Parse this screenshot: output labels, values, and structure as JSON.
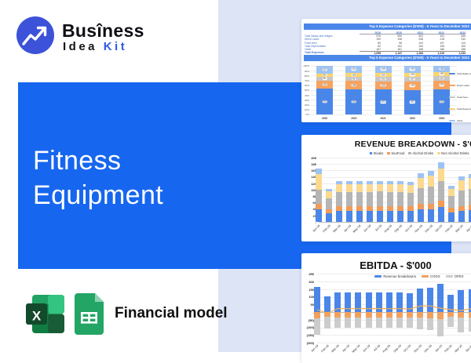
{
  "brand": {
    "word_top": "Busîness",
    "word_bottom": "Idea",
    "word_accent": "Kit"
  },
  "hero": {
    "line1": "Fitness",
    "line2": "Equipment"
  },
  "footer": {
    "label": "Financial model"
  },
  "colors": {
    "accent_blue": "#1666ef",
    "panel_lavender": "#dde4f6",
    "logo_blue": "#3b52d9",
    "chart_header_blue": "#4a86e8",
    "brand_accent": "#2d5be8"
  },
  "chart_data": [
    {
      "type": "table",
      "title": "Top 5 Expense Categories ($'000) - 5 Years to December 2023",
      "columns": [
        "2019",
        "2020",
        "2021",
        "2022",
        "2023"
      ],
      "series": [
        {
          "name": "Total Salary and Wages",
          "color": "#4a86e8",
          "values": [
            576,
            590,
            602,
            611,
            635
          ]
        },
        {
          "name": "Direct Labor",
          "color": "#f6a35f",
          "values": [
            190,
            198,
            208,
            218,
            230
          ]
        },
        {
          "name": "Fixed fees",
          "color": "#c7c7c7",
          "values": [
            80,
            96,
            102,
            107,
            110
          ]
        },
        {
          "name": "Total Depreciation",
          "color": "#fbd46d",
          "values": [
            82,
            102,
            104,
            108,
            100
          ]
        },
        {
          "name": "Other",
          "color": "#9dc3f3",
          "values": [
            167,
            161,
            168,
            166,
            158
          ]
        }
      ],
      "total_label": "Total Expenses",
      "totals": [
        1095,
        1147,
        1184,
        1210,
        1233
      ],
      "bar_type": "stacked-100-percent",
      "y_ticks_percent": [
        0,
        10,
        20,
        30,
        40,
        50,
        60,
        70,
        80,
        90,
        100
      ],
      "legend_position": "right"
    },
    {
      "type": "bar",
      "stacked": true,
      "title": "REVENUE BREAKDOWN - $'000",
      "categories": [
        "Jan-19",
        "Feb-19",
        "Mar-19",
        "Apr-19",
        "May-19",
        "Jun-19",
        "Jul-19",
        "Aug-19",
        "Sep-19",
        "Oct-19",
        "Nov-19",
        "Dec-19",
        "Jan-20",
        "Feb-20",
        "Mar-20",
        "Apr-20"
      ],
      "series": [
        {
          "name": "Steaks",
          "color": "#4a86e8",
          "in_legend": true,
          "values": [
            40,
            27,
            33,
            33,
            33,
            33,
            35,
            33,
            33,
            33,
            38,
            40,
            47,
            30,
            35,
            37
          ]
        },
        {
          "name": "SeaFood",
          "color": "#f29b57",
          "in_legend": true,
          "values": [
            15,
            13,
            15,
            15,
            15,
            15,
            15,
            15,
            15,
            15,
            17,
            17,
            20,
            13,
            15,
            16
          ]
        },
        {
          "name": "Alcohol Drinks",
          "color": "#b5b5b5",
          "in_legend": true,
          "values": [
            45,
            33,
            44,
            44,
            44,
            44,
            44,
            44,
            44,
            43,
            50,
            52,
            60,
            38,
            47,
            50
          ]
        },
        {
          "name": "Non Alcohol Drinks",
          "color": "#fbd98f",
          "in_legend": true,
          "values": [
            48,
            22,
            25,
            25,
            25,
            25,
            24,
            25,
            25,
            24,
            32,
            34,
            40,
            22,
            32,
            34
          ]
        },
        {
          "name": "unlabeled-top-segment",
          "color": "#9dc3f3",
          "in_legend": false,
          "values": [
            17,
            8,
            10,
            10,
            10,
            10,
            10,
            10,
            10,
            10,
            15,
            15,
            18,
            10,
            13,
            13
          ]
        }
      ],
      "ylim": [
        0,
        200
      ],
      "ytick_step": 20,
      "zero_tick_label": "-",
      "legend_position": "top"
    },
    {
      "type": "bar+line",
      "title": "EBITDA - $'000",
      "categories": [
        "Jan-19",
        "Feb-19",
        "Mar-19",
        "Apr-19",
        "May-19",
        "Jun-19",
        "Jul-19",
        "Aug-19",
        "Sep-19",
        "Oct-19",
        "Nov-19",
        "Dec-19",
        "Jan-20",
        "Feb-20",
        "Mar-20",
        "Apr-20"
      ],
      "series": [
        {
          "name": "Revenue breakdowns",
          "color": "#4a86e8",
          "values": [
            165,
            103,
            127,
            127,
            127,
            127,
            128,
            127,
            127,
            125,
            152,
            158,
            185,
            113,
            142,
            150
          ]
        },
        {
          "name": "COGS",
          "color": "#f2a05c",
          "values": [
            -40,
            -30,
            -35,
            -35,
            -35,
            -35,
            -35,
            -35,
            -35,
            -35,
            -38,
            -40,
            -45,
            -32,
            -37,
            -38
          ]
        },
        {
          "name": "OPEX",
          "color": "#cccccc",
          "values": [
            -110,
            -80,
            -70,
            -70,
            -70,
            -70,
            -70,
            -70,
            -70,
            -70,
            -75,
            -78,
            -115,
            -65,
            -95,
            -90
          ]
        }
      ],
      "line": {
        "name": "ebitda-line",
        "color": "#f5ad4f",
        "values": [
          15,
          -7,
          22,
          22,
          22,
          22,
          23,
          22,
          22,
          20,
          39,
          40,
          25,
          16,
          10,
          22
        ]
      },
      "ylim": [
        -200,
        250
      ],
      "ytick_values": [
        250,
        200,
        150,
        100,
        50,
        0,
        -50,
        -100,
        -150,
        -200
      ],
      "y_tick_labels": [
        "250",
        "200",
        "150",
        "100",
        "50",
        "-",
        "(50)",
        "(100)",
        "(150)",
        "(200)"
      ],
      "legend_position": "top"
    }
  ]
}
